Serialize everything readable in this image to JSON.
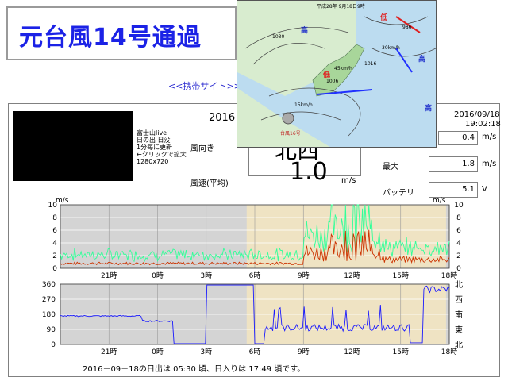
{
  "header": {
    "title": "元台風14号通過",
    "mobile_link_prefix": "<<",
    "mobile_link_text": "携帯サイト",
    "mobile_link_suffix": ">>"
  },
  "camera": {
    "lines": [
      "富士山live",
      "日の出 日没",
      "1分毎に更新",
      "←クリックで拡大",
      "1280x720"
    ]
  },
  "station": {
    "date_partial": "2016",
    "datetime_date": "2016/09/18",
    "datetime_time": "19:02:18",
    "wind_dir_label": "風向き",
    "wind_dir_value": "北西",
    "wind_dir_speed": "0.4",
    "unit_ms": "m/s",
    "avg_label": "風速(平均)",
    "avg_value": "1.0",
    "max_label": "最大",
    "max_value": "1.8",
    "battery_label": "バッテリ",
    "battery_value": "5.1",
    "battery_unit": "V"
  },
  "weather_map": {
    "header": "平成28年 9月18日9時",
    "labels": {
      "low1": "低",
      "high1": "高",
      "high2": "高",
      "high3": "高",
      "low2": "低",
      "p1030": "1030",
      "p1006": "1006",
      "p1016": "1016",
      "p986": "986",
      "s45": "45km/h",
      "s15": "15km/h",
      "s30": "30km/h",
      "ty": "台風16号"
    }
  },
  "chart_top": {
    "unit_left": "m/s",
    "unit_right": "m/s",
    "y_ticks": [
      "10",
      "8",
      "6",
      "4",
      "2",
      "0"
    ],
    "x_ticks": [
      "21時",
      "0時",
      "3時",
      "6時",
      "9時",
      "12時",
      "15時",
      "18時"
    ]
  },
  "chart_bottom": {
    "y_ticks": [
      "360",
      "270",
      "180",
      "90",
      "0"
    ],
    "dir_labels": [
      "北",
      "西",
      "南",
      "東",
      "北"
    ],
    "x_ticks": [
      "21時",
      "0時",
      "3時",
      "6時",
      "9時",
      "12時",
      "15時",
      "18時"
    ]
  },
  "chart_data": [
    {
      "type": "line",
      "ylim": [
        0,
        10
      ],
      "ylabel": "m/s",
      "series": [
        {
          "name": "",
          "color": "#33ff99"
        },
        {
          "name": "",
          "color": "#cc3300"
        }
      ]
    },
    {
      "type": "line",
      "ylim": [
        0,
        360
      ],
      "series": [
        {
          "name": "",
          "color": "#1a1aff"
        }
      ]
    }
  ],
  "footer": {
    "sun_text": "2016－09－18の日出は 05:30 頃、日入りは 17:49 頃です。"
  },
  "colors": {
    "title": "#1b22e6",
    "day_band": "#efe3c3",
    "night_band": "#d4d4d4"
  }
}
